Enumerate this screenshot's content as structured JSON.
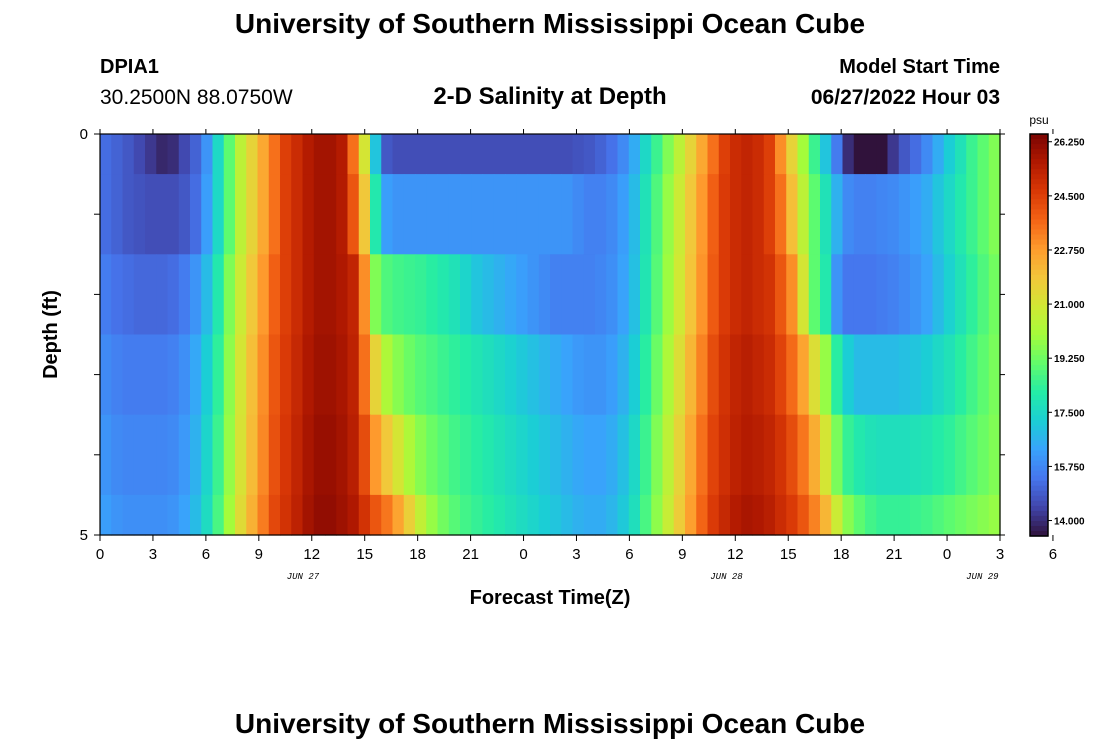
{
  "header": {
    "title": "University of Southern Mississippi Ocean Cube",
    "station_id": "DPIA1",
    "station_coords": "30.2500N  88.0750W",
    "chart_heading": "2-D Salinity at Depth",
    "model_start_label": "Model Start Time",
    "model_start_value": "06/27/2022 Hour 03"
  },
  "footer": {
    "title": "University of Southern Mississippi Ocean Cube"
  },
  "chart_data": {
    "type": "heatmap",
    "title": "2-D Salinity at Depth",
    "xlabel": "Forecast Time(Z)",
    "ylabel": "Depth (ft)",
    "x_hours_from_jun27_00z": [
      0,
      51
    ],
    "x_tick_labels": [
      "0",
      "3",
      "6",
      "9",
      "12",
      "15",
      "18",
      "21",
      "0",
      "3",
      "6",
      "9",
      "12",
      "15",
      "18",
      "21",
      "0",
      "3",
      "6"
    ],
    "date_labels": [
      "JUN 27",
      "JUN 28",
      "JUN 29"
    ],
    "y_range": [
      0,
      5
    ],
    "y_tick_labels": [
      "0",
      "5"
    ],
    "colorbar_unit": "psu",
    "colorbar_labels": [
      "26.250",
      "24.500",
      "22.750",
      "21.000",
      "19.250",
      "17.500",
      "15.750",
      "14.000"
    ],
    "colorbar_range": [
      13.5,
      26.5
    ],
    "colormap": [
      "#30123b",
      "#4145ab",
      "#4675ed",
      "#39a2fc",
      "#1bcfd4",
      "#24eca6",
      "#61fc6c",
      "#a4fc3b",
      "#d1e834",
      "#f3c63a",
      "#fe9b2d",
      "#f36315",
      "#d93806",
      "#b11901",
      "#7a0402"
    ],
    "layers": [
      {
        "depth_top": 0.0,
        "depth_bottom": 0.5,
        "values": [
          15.2,
          15.0,
          14.8,
          14.5,
          14.2,
          13.9,
          14.0,
          14.5,
          15.0,
          16.0,
          17.5,
          19.0,
          20.5,
          21.5,
          22.5,
          23.5,
          24.5,
          25.0,
          25.5,
          25.8,
          25.8,
          25.5,
          23.5,
          21.0,
          17.0,
          14.8,
          14.6,
          14.6,
          14.6,
          14.6,
          14.6,
          14.6,
          14.6,
          14.6,
          14.6,
          14.6,
          14.6,
          14.6,
          14.6,
          14.6,
          14.6,
          14.6,
          14.7,
          14.8,
          15.0,
          15.3,
          15.8,
          16.5,
          17.5,
          18.5,
          19.5,
          20.5,
          21.5,
          22.5,
          23.5,
          24.5,
          25.0,
          25.2,
          25.0,
          24.5,
          23.0,
          21.5,
          20.0,
          18.5,
          17.0,
          15.5,
          14.0,
          13.0,
          12.8,
          13.0,
          14.2,
          14.8,
          15.2,
          15.8,
          16.5,
          17.2,
          17.8,
          18.5,
          19.0,
          19.5
        ]
      },
      {
        "depth_top": 0.5,
        "depth_bottom": 1.5,
        "values": [
          15.2,
          15.0,
          14.8,
          14.7,
          14.6,
          14.6,
          14.6,
          14.8,
          15.2,
          16.2,
          17.5,
          19.0,
          20.5,
          21.5,
          22.5,
          23.5,
          24.5,
          25.0,
          25.5,
          25.8,
          25.8,
          25.5,
          24.0,
          21.8,
          18.0,
          16.2,
          16.0,
          16.0,
          16.0,
          16.0,
          16.0,
          16.0,
          16.0,
          16.0,
          16.0,
          16.0,
          16.0,
          16.0,
          16.0,
          16.0,
          16.0,
          16.0,
          15.8,
          15.6,
          15.6,
          15.8,
          16.2,
          16.8,
          17.8,
          18.8,
          19.8,
          20.8,
          21.8,
          22.8,
          23.8,
          24.6,
          25.0,
          25.2,
          25.0,
          24.5,
          23.5,
          22.0,
          20.5,
          19.0,
          17.8,
          16.6,
          15.8,
          15.6,
          15.6,
          15.7,
          15.8,
          16.0,
          16.2,
          16.5,
          17.0,
          17.5,
          18.0,
          18.5,
          19.0,
          19.5
        ]
      },
      {
        "depth_top": 1.5,
        "depth_bottom": 2.5,
        "values": [
          15.5,
          15.3,
          15.2,
          15.1,
          15.1,
          15.1,
          15.2,
          15.5,
          16.0,
          16.8,
          18.0,
          19.5,
          20.8,
          21.8,
          22.8,
          23.8,
          24.5,
          25.0,
          25.5,
          25.8,
          25.8,
          25.6,
          25.2,
          23.0,
          19.5,
          18.8,
          18.6,
          18.5,
          18.4,
          18.2,
          18.0,
          17.8,
          17.4,
          17.0,
          16.8,
          16.6,
          16.4,
          16.2,
          16.0,
          15.8,
          15.6,
          15.6,
          15.6,
          15.6,
          15.7,
          15.9,
          16.3,
          16.9,
          17.9,
          18.9,
          19.9,
          20.9,
          21.9,
          22.9,
          23.9,
          24.6,
          25.0,
          25.2,
          25.0,
          24.8,
          24.0,
          23.0,
          21.0,
          19.0,
          18.0,
          16.0,
          15.4,
          15.4,
          15.4,
          15.5,
          15.6,
          15.8,
          16.0,
          16.3,
          16.8,
          17.3,
          17.8,
          18.3,
          18.8,
          19.3
        ]
      },
      {
        "depth_top": 2.5,
        "depth_bottom": 3.5,
        "values": [
          15.8,
          15.6,
          15.5,
          15.5,
          15.5,
          15.5,
          15.6,
          15.9,
          16.4,
          17.2,
          18.3,
          19.7,
          21.0,
          22.0,
          23.0,
          24.0,
          24.6,
          25.1,
          25.6,
          25.9,
          25.9,
          25.7,
          25.3,
          23.5,
          21.5,
          20.2,
          19.6,
          19.2,
          18.9,
          18.7,
          18.5,
          18.3,
          18.1,
          17.9,
          17.7,
          17.5,
          17.3,
          17.1,
          16.9,
          16.7,
          16.5,
          16.3,
          16.1,
          16.0,
          16.0,
          16.2,
          16.6,
          17.2,
          18.2,
          19.2,
          20.2,
          21.2,
          22.2,
          23.2,
          24.2,
          24.8,
          25.2,
          25.4,
          25.2,
          25.0,
          24.4,
          23.6,
          22.6,
          21.2,
          19.8,
          18.2,
          17.2,
          16.8,
          16.8,
          16.8,
          16.8,
          16.9,
          17.0,
          17.2,
          17.5,
          17.8,
          18.2,
          18.6,
          19.0,
          19.4
        ]
      },
      {
        "depth_top": 3.5,
        "depth_bottom": 4.5,
        "values": [
          16.0,
          15.8,
          15.7,
          15.7,
          15.7,
          15.7,
          15.8,
          16.1,
          16.6,
          17.4,
          18.5,
          19.8,
          21.1,
          22.1,
          23.1,
          24.1,
          24.7,
          25.2,
          25.7,
          26.0,
          26.0,
          25.8,
          25.4,
          24.2,
          22.8,
          21.8,
          21.0,
          20.2,
          19.6,
          19.2,
          18.9,
          18.6,
          18.4,
          18.2,
          18.0,
          17.8,
          17.6,
          17.4,
          17.2,
          17.0,
          16.8,
          16.6,
          16.4,
          16.3,
          16.3,
          16.5,
          16.9,
          17.5,
          18.5,
          19.5,
          20.5,
          21.5,
          22.5,
          23.5,
          24.4,
          24.9,
          25.3,
          25.5,
          25.4,
          25.2,
          24.8,
          24.2,
          23.4,
          22.4,
          21.0,
          19.4,
          18.4,
          18.0,
          17.8,
          17.7,
          17.7,
          17.7,
          17.8,
          17.9,
          18.1,
          18.3,
          18.6,
          18.9,
          19.2,
          19.5
        ]
      },
      {
        "depth_top": 4.5,
        "depth_bottom": 5.0,
        "values": [
          16.2,
          16.0,
          15.9,
          15.9,
          15.9,
          15.9,
          16.0,
          16.3,
          16.8,
          17.6,
          18.7,
          20.0,
          21.3,
          22.3,
          23.3,
          24.3,
          24.8,
          25.3,
          25.8,
          26.1,
          26.1,
          25.9,
          25.6,
          24.8,
          24.0,
          23.4,
          22.6,
          21.6,
          20.6,
          19.8,
          19.3,
          18.9,
          18.6,
          18.4,
          18.2,
          18.0,
          17.8,
          17.6,
          17.4,
          17.2,
          17.0,
          16.8,
          16.6,
          16.5,
          16.5,
          16.7,
          17.1,
          17.7,
          18.7,
          19.7,
          20.7,
          21.7,
          22.7,
          23.7,
          24.6,
          25.1,
          25.5,
          25.7,
          25.6,
          25.4,
          25.0,
          24.6,
          24.0,
          23.2,
          22.2,
          20.8,
          19.6,
          19.0,
          18.6,
          18.4,
          18.4,
          18.4,
          18.5,
          18.6,
          18.8,
          19.0,
          19.2,
          19.4,
          19.6,
          19.8
        ]
      }
    ]
  }
}
